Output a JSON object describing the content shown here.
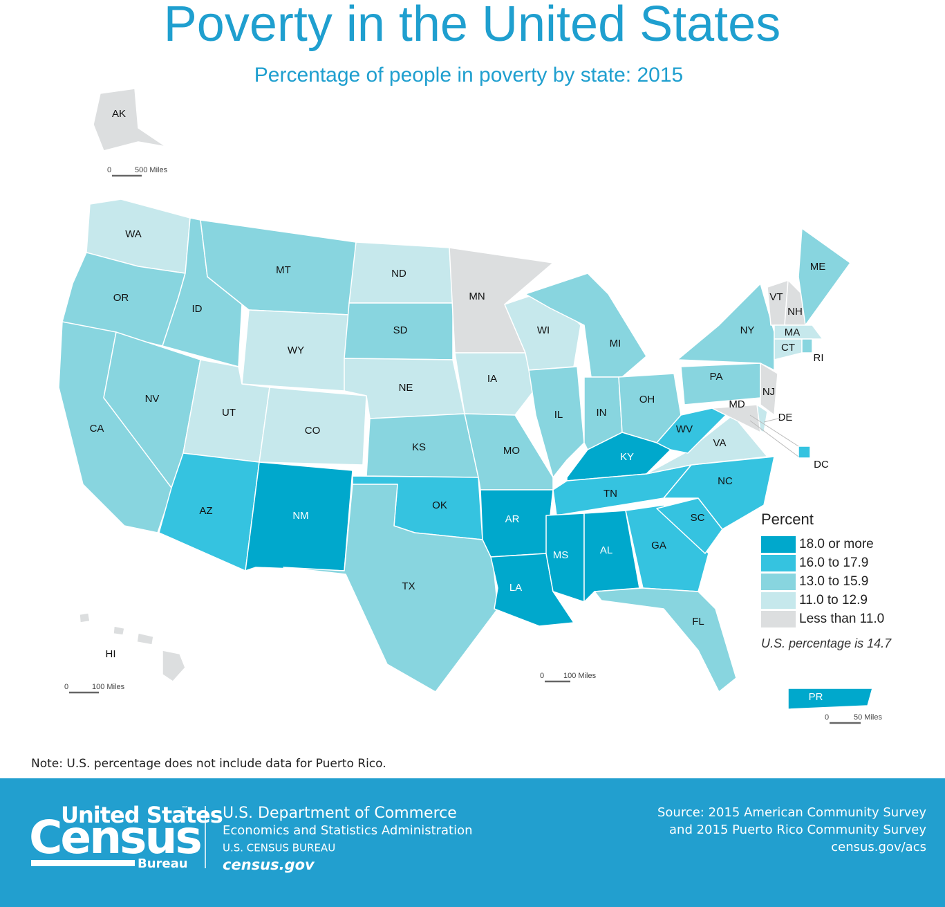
{
  "header": {
    "title": "Poverty in the United States",
    "subtitle": "Percentage of people in poverty by state: 2015"
  },
  "legend": {
    "title": "Percent",
    "items": [
      {
        "label": "18.0 or more",
        "color": "#00a8cc"
      },
      {
        "label": "16.0 to 17.9",
        "color": "#35c3e0"
      },
      {
        "label": "13.0 to 15.9",
        "color": "#88d5df"
      },
      {
        "label": "11.0 to 12.9",
        "color": "#c6e8ec"
      },
      {
        "label": "Less than 11.0",
        "color": "#dcdedf"
      }
    ],
    "note": "U.S. percentage is 14.7"
  },
  "states": [
    {
      "label": "AK",
      "color": "#dcdedf"
    },
    {
      "label": "WA",
      "color": "#c6e8ec"
    },
    {
      "label": "OR",
      "color": "#88d5df"
    },
    {
      "label": "CA",
      "color": "#88d5df"
    },
    {
      "label": "ID",
      "color": "#88d5df"
    },
    {
      "label": "NV",
      "color": "#88d5df"
    },
    {
      "label": "MT",
      "color": "#88d5df"
    },
    {
      "label": "WY",
      "color": "#c6e8ec"
    },
    {
      "label": "UT",
      "color": "#c6e8ec"
    },
    {
      "label": "CO",
      "color": "#c6e8ec"
    },
    {
      "label": "AZ",
      "color": "#35c3e0"
    },
    {
      "label": "NM",
      "color": "#00a8cc"
    },
    {
      "label": "ND",
      "color": "#c6e8ec"
    },
    {
      "label": "SD",
      "color": "#88d5df"
    },
    {
      "label": "NE",
      "color": "#c6e8ec"
    },
    {
      "label": "KS",
      "color": "#88d5df"
    },
    {
      "label": "OK",
      "color": "#35c3e0"
    },
    {
      "label": "TX",
      "color": "#88d5df"
    },
    {
      "label": "MN",
      "color": "#dcdedf"
    },
    {
      "label": "IA",
      "color": "#c6e8ec"
    },
    {
      "label": "MO",
      "color": "#88d5df"
    },
    {
      "label": "AR",
      "color": "#00a8cc"
    },
    {
      "label": "LA",
      "color": "#00a8cc"
    },
    {
      "label": "WI",
      "color": "#c6e8ec"
    },
    {
      "label": "IL",
      "color": "#88d5df"
    },
    {
      "label": "MI",
      "color": "#88d5df"
    },
    {
      "label": "IN",
      "color": "#88d5df"
    },
    {
      "label": "OH",
      "color": "#88d5df"
    },
    {
      "label": "KY",
      "color": "#00a8cc"
    },
    {
      "label": "TN",
      "color": "#35c3e0"
    },
    {
      "label": "MS",
      "color": "#00a8cc"
    },
    {
      "label": "AL",
      "color": "#00a8cc"
    },
    {
      "label": "GA",
      "color": "#35c3e0"
    },
    {
      "label": "FL",
      "color": "#88d5df"
    },
    {
      "label": "SC",
      "color": "#35c3e0"
    },
    {
      "label": "NC",
      "color": "#35c3e0"
    },
    {
      "label": "VA",
      "color": "#c6e8ec"
    },
    {
      "label": "WV",
      "color": "#35c3e0"
    },
    {
      "label": "PA",
      "color": "#88d5df"
    },
    {
      "label": "NY",
      "color": "#88d5df"
    },
    {
      "label": "VT",
      "color": "#dcdedf"
    },
    {
      "label": "NH",
      "color": "#dcdedf"
    },
    {
      "label": "ME",
      "color": "#88d5df"
    },
    {
      "label": "MA",
      "color": "#c6e8ec"
    },
    {
      "label": "CT",
      "color": "#c6e8ec"
    },
    {
      "label": "RI",
      "color": "#88d5df"
    },
    {
      "label": "NJ",
      "color": "#dcdedf"
    },
    {
      "label": "DE",
      "color": "#c6e8ec"
    },
    {
      "label": "MD",
      "color": "#dcdedf"
    },
    {
      "label": "DC",
      "color": "#35c3e0"
    },
    {
      "label": "HI",
      "color": "#dcdedf"
    },
    {
      "label": "PR",
      "color": "#00a8cc"
    }
  ],
  "scale_bars": [
    {
      "start": "0",
      "end": "500 Miles"
    },
    {
      "start": "0",
      "end": "100 Miles"
    },
    {
      "start": "0",
      "end": "100 Miles"
    },
    {
      "start": "0",
      "end": "50 Miles"
    }
  ],
  "note": "Note: U.S. percentage does not include data for Puerto Rico.",
  "footer": {
    "logo": {
      "line1": "United States",
      "tm": "™",
      "line2": "Census",
      "line3": "Bureau"
    },
    "department": [
      "U.S. Department of Commerce",
      "Economics and Statistics Administration",
      "U.S. CENSUS BUREAU",
      "census.gov"
    ],
    "source": [
      "Source: 2015 American Community Survey",
      "and 2015 Puerto Rico Community Survey",
      "census.gov/acs"
    ]
  }
}
